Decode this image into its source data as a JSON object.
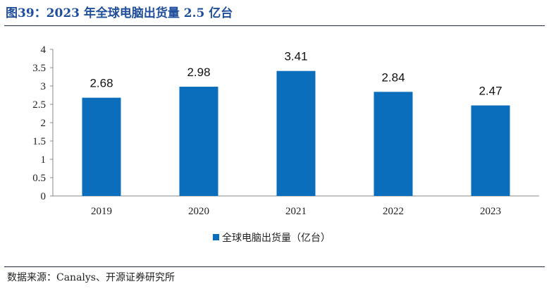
{
  "figure_title": "图39：2023 年全球电脑出货量 2.5 亿台",
  "source": "数据来源：Canalys、开源证券研究所",
  "colors": {
    "bar": "#0a6ebd",
    "title": "#1f4e9c"
  },
  "chart_data": {
    "type": "bar",
    "title": "",
    "xlabel": "",
    "ylabel": "",
    "categories": [
      "2019",
      "2020",
      "2021",
      "2022",
      "2023"
    ],
    "series": [
      {
        "name": "全球电脑出货量（亿台）",
        "values": [
          2.68,
          2.98,
          3.41,
          2.84,
          2.47
        ]
      }
    ],
    "data_labels": [
      "2.68",
      "2.98",
      "3.41",
      "2.84",
      "2.47"
    ],
    "yticks": [
      "0",
      "0.5",
      "1",
      "1.5",
      "2",
      "2.5",
      "3",
      "3.5",
      "4"
    ],
    "ylim": [
      0,
      4
    ],
    "grid": false,
    "legend_position": "bottom"
  }
}
